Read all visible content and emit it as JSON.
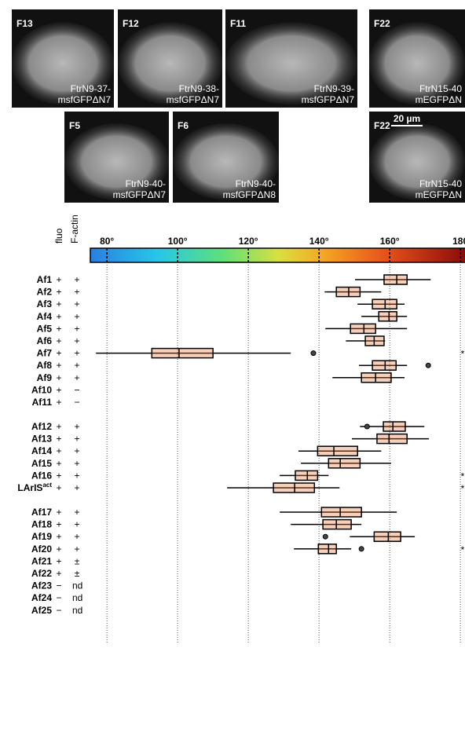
{
  "panels": [
    {
      "label": "F13",
      "caption": [
        "FtrN9-37-",
        "msfGFPΔN7"
      ]
    },
    {
      "label": "F12",
      "caption": [
        "FtrN9-38-",
        "msfGFPΔN7"
      ]
    },
    {
      "label": "F11",
      "caption": [
        "FtrN9-39-",
        "msfGFPΔN7"
      ]
    },
    {
      "label": "F22",
      "caption": [
        "FtrN15-40",
        "mEGFPΔN"
      ]
    },
    {
      "label": "F5",
      "caption": [
        "FtrN9-40-",
        "msfGFPΔN7"
      ]
    },
    {
      "label": "F6",
      "caption": [
        "FtrN9-40-",
        "msfGFPΔN8"
      ]
    },
    {
      "label": "F22",
      "caption": [
        "FtrN15-40",
        "mEGFPΔN"
      ]
    }
  ],
  "scale_bar": "20 µm",
  "chart_data": {
    "type": "box",
    "column_headers": [
      "fluo",
      "F-actin"
    ],
    "xlim": [
      75.3,
      181.3
    ],
    "xticks": [
      {
        "value": 80,
        "label": "80°"
      },
      {
        "value": 100,
        "label": "100°"
      },
      {
        "value": 120,
        "label": "120°"
      },
      {
        "value": 140,
        "label": "140°"
      },
      {
        "value": 160,
        "label": "160°"
      },
      180
    ],
    "grid": true,
    "colorbar": true,
    "groups": [
      {
        "rows": [
          {
            "name": "Af1",
            "fluo": "+",
            "factin": "+",
            "box": {
              "min": 150.2,
              "q1": 158.4,
              "median": 162,
              "q3": 164.9,
              "max": 171.6
            }
          },
          {
            "name": "Af2",
            "fluo": "+",
            "factin": "+",
            "box": {
              "min": 141.6,
              "q1": 144.9,
              "median": 148.4,
              "q3": 151.6,
              "max": 157.6
            }
          },
          {
            "name": "Af3",
            "fluo": "+",
            "factin": "+",
            "box": {
              "min": 150.9,
              "q1": 155.1,
              "median": 158.7,
              "q3": 162,
              "max": 164.2
            }
          },
          {
            "name": "Af4",
            "fluo": "+",
            "factin": "+",
            "box": {
              "min": 152,
              "q1": 156.9,
              "median": 159.8,
              "q3": 162,
              "max": 164.9
            }
          },
          {
            "name": "Af5",
            "fluo": "+",
            "factin": "+",
            "box": {
              "min": 141.8,
              "q1": 148.9,
              "median": 152.7,
              "q3": 156,
              "max": 164.9
            }
          },
          {
            "name": "Af6",
            "fluo": "+",
            "factin": "+",
            "box": {
              "min": 147.6,
              "q1": 153.1,
              "median": 155.6,
              "q3": 158.4,
              "max": 158.7
            }
          },
          {
            "name": "Af7",
            "fluo": "+",
            "factin": "+",
            "box": {
              "min": 76.9,
              "q1": 92.7,
              "median": 100.4,
              "q3": 110,
              "max": 132
            },
            "outliers": [
              138.4
            ],
            "note": "*"
          },
          {
            "name": "Af8",
            "fluo": "+",
            "factin": "+",
            "box": {
              "min": 151.3,
              "q1": 155.1,
              "median": 158.7,
              "q3": 161.8,
              "max": 164.9
            },
            "outliers": [
              170.9
            ]
          },
          {
            "name": "Af9",
            "fluo": "+",
            "factin": "+",
            "box": {
              "min": 143.8,
              "q1": 152,
              "median": 156,
              "q3": 160.4,
              "max": 164.2
            }
          },
          {
            "name": "Af10",
            "fluo": "+",
            "factin": "−"
          },
          {
            "name": "Af11",
            "fluo": "+",
            "factin": "−"
          }
        ]
      },
      {
        "rows": [
          {
            "name": "Af12",
            "fluo": "+",
            "factin": "+",
            "box": {
              "min": 151.6,
              "q1": 158.2,
              "median": 160.9,
              "q3": 164.4,
              "max": 169.8
            },
            "outliers": [
              153.6
            ]
          },
          {
            "name": "Af13",
            "fluo": "+",
            "factin": "+",
            "box": {
              "min": 149.3,
              "q1": 156.4,
              "median": 159.8,
              "q3": 164.9,
              "max": 171.1
            }
          },
          {
            "name": "Af14",
            "fluo": "+",
            "factin": "+",
            "box": {
              "min": 134.2,
              "q1": 139.6,
              "median": 144.2,
              "q3": 150.9,
              "max": 157.6
            }
          },
          {
            "name": "Af15",
            "fluo": "+",
            "factin": "+",
            "box": {
              "min": 134.9,
              "q1": 142.7,
              "median": 146,
              "q3": 151.6,
              "max": 160.4
            }
          },
          {
            "name": "Af16",
            "fluo": "+",
            "factin": "+",
            "box": {
              "min": 128.9,
              "q1": 133.3,
              "median": 136.7,
              "q3": 139.6,
              "max": 142.7
            },
            "note": "*"
          },
          {
            "name": "LArIS",
            "name_sup": "act",
            "fluo": "+",
            "factin": "+",
            "box": {
              "min": 114,
              "q1": 127.1,
              "median": 133.1,
              "q3": 138.7,
              "max": 145.8
            },
            "note": "*"
          }
        ]
      },
      {
        "rows": [
          {
            "name": "Af17",
            "fluo": "+",
            "factin": "+",
            "box": {
              "min": 128.9,
              "q1": 140.7,
              "median": 146,
              "q3": 152,
              "max": 162
            }
          },
          {
            "name": "Af18",
            "fluo": "+",
            "factin": "+",
            "box": {
              "min": 132,
              "q1": 141.1,
              "median": 144.9,
              "q3": 149.1,
              "max": 152
            }
          },
          {
            "name": "Af19",
            "fluo": "+",
            "factin": "+",
            "box": {
              "min": 148.7,
              "q1": 155.6,
              "median": 159.6,
              "q3": 163.1,
              "max": 167.1
            },
            "outliers": [
              141.8
            ]
          },
          {
            "name": "Af20",
            "fluo": "+",
            "factin": "+",
            "box": {
              "min": 132.9,
              "q1": 139.8,
              "median": 142.7,
              "q3": 144.9,
              "max": 149.1
            },
            "outliers": [
              152
            ],
            "note": "*"
          },
          {
            "name": "Af21",
            "fluo": "+",
            "factin": "±"
          },
          {
            "name": "Af22",
            "fluo": "+",
            "factin": "±"
          },
          {
            "name": "Af23",
            "fluo": "−",
            "factin": "nd"
          },
          {
            "name": "Af24",
            "fluo": "−",
            "factin": "nd"
          },
          {
            "name": "Af25",
            "fluo": "−",
            "factin": "nd"
          }
        ]
      }
    ]
  }
}
